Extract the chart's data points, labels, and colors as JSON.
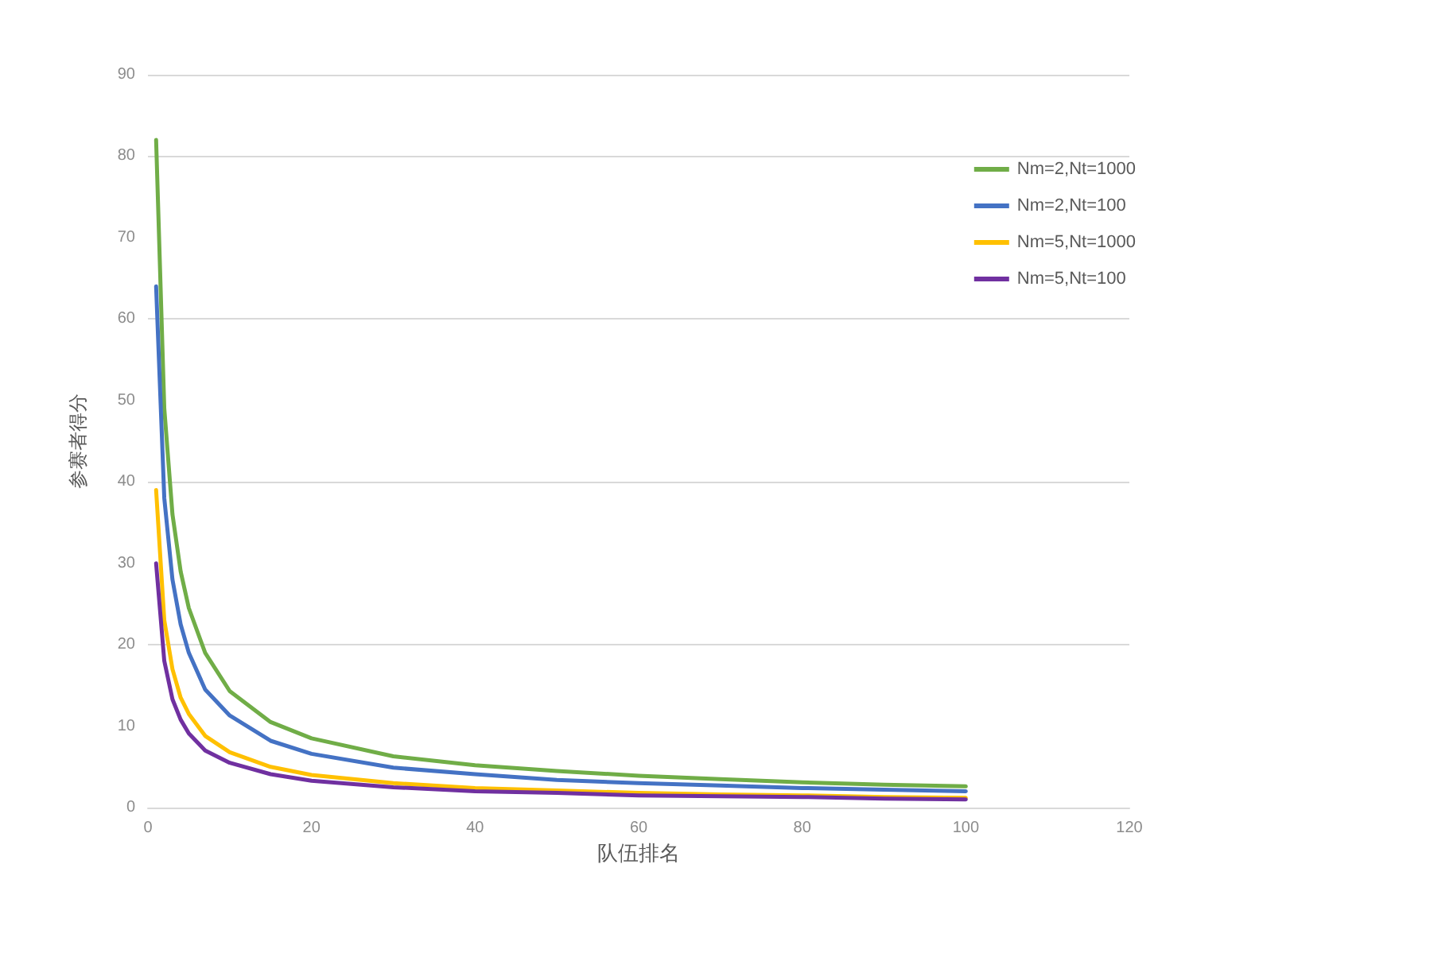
{
  "chart_data": {
    "type": "line",
    "xlabel": "队伍排名",
    "ylabel": "参赛者得分",
    "x": [
      1,
      2,
      3,
      4,
      5,
      7,
      10,
      15,
      20,
      30,
      40,
      50,
      60,
      70,
      80,
      90,
      100
    ],
    "series": [
      {
        "name": "Nm=2,Nt=1000",
        "color": "#70ad47",
        "values": [
          82,
          49,
          36,
          29,
          24.5,
          19,
          14.3,
          10.5,
          8.5,
          6.3,
          5.2,
          4.5,
          3.9,
          3.5,
          3.1,
          2.8,
          2.6
        ]
      },
      {
        "name": "Nm=2,Nt=100",
        "color": "#4472c4",
        "values": [
          64,
          38,
          28,
          22.5,
          19,
          14.5,
          11.3,
          8.2,
          6.6,
          4.9,
          4.1,
          3.4,
          3,
          2.7,
          2.4,
          2.2,
          2
        ]
      },
      {
        "name": "Nm=5,Nt=1000",
        "color": "#ffc000",
        "values": [
          39,
          23,
          17,
          13.5,
          11.5,
          8.8,
          6.8,
          5,
          4,
          3,
          2.4,
          2.1,
          1.8,
          1.6,
          1.5,
          1.3,
          1.2
        ]
      },
      {
        "name": "Nm=5,Nt=100",
        "color": "#7030a0",
        "values": [
          30,
          18,
          13.3,
          10.8,
          9.1,
          7,
          5.5,
          4.1,
          3.3,
          2.5,
          2,
          1.8,
          1.5,
          1.4,
          1.3,
          1.1,
          1
        ]
      }
    ],
    "xlim": [
      0,
      120
    ],
    "xticks": [
      0,
      20,
      40,
      60,
      80,
      100,
      120
    ],
    "ylim": [
      0,
      90
    ],
    "yticks": [
      0,
      10,
      20,
      30,
      40,
      50,
      60,
      70,
      80,
      90
    ],
    "grid": "y",
    "legend": "top right",
    "marker": "none",
    "line_style": "solid"
  }
}
